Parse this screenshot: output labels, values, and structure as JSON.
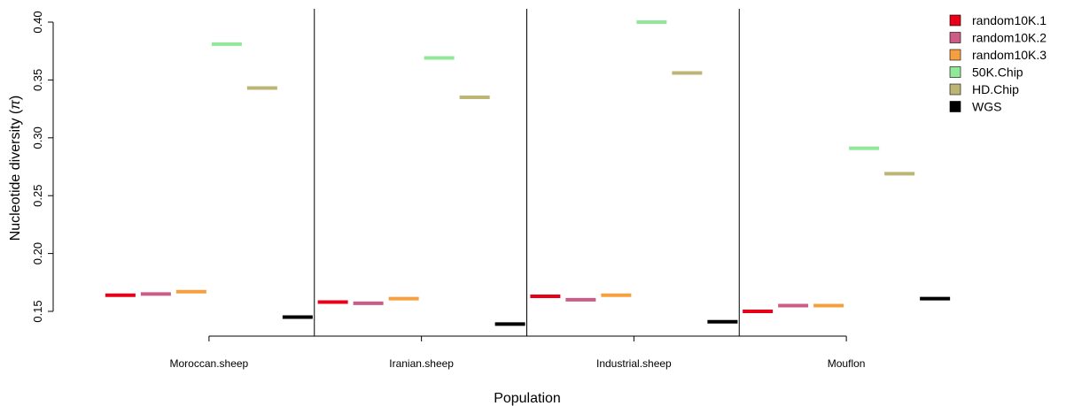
{
  "chart_data": {
    "type": "scatter",
    "xlabel": "Population",
    "ylabel_prefix": "Nucleotide diversity (",
    "ylabel_symbol": "π",
    "ylabel_suffix": ")",
    "ylim": [
      0.13,
      0.4
    ],
    "yticks": [
      0.15,
      0.2,
      0.25,
      0.3,
      0.35,
      0.4
    ],
    "ytick_labels": [
      "0.15",
      "0.20",
      "0.25",
      "0.30",
      "0.35",
      "0.40"
    ],
    "categories": [
      "Moroccan.sheep",
      "Iranian.sheep",
      "Industrial.sheep",
      "Mouflon"
    ],
    "legend_position": "top-right",
    "grid": false,
    "series": [
      {
        "name": "random10K.1",
        "color": "#e8001a",
        "values": [
          0.164,
          0.158,
          0.163,
          0.15
        ]
      },
      {
        "name": "random10K.2",
        "color": "#cc5c86",
        "values": [
          0.165,
          0.157,
          0.16,
          0.155
        ]
      },
      {
        "name": "random10K.3",
        "color": "#f5a040",
        "values": [
          0.167,
          0.161,
          0.164,
          0.155
        ]
      },
      {
        "name": "50K.Chip",
        "color": "#90e898",
        "values": [
          0.381,
          0.369,
          0.4,
          0.291
        ]
      },
      {
        "name": "HD.Chip",
        "color": "#bdb576",
        "values": [
          0.343,
          0.335,
          0.356,
          0.269
        ]
      },
      {
        "name": "WGS",
        "color": "#000000",
        "values": [
          0.145,
          0.139,
          0.141,
          0.161
        ]
      }
    ]
  }
}
